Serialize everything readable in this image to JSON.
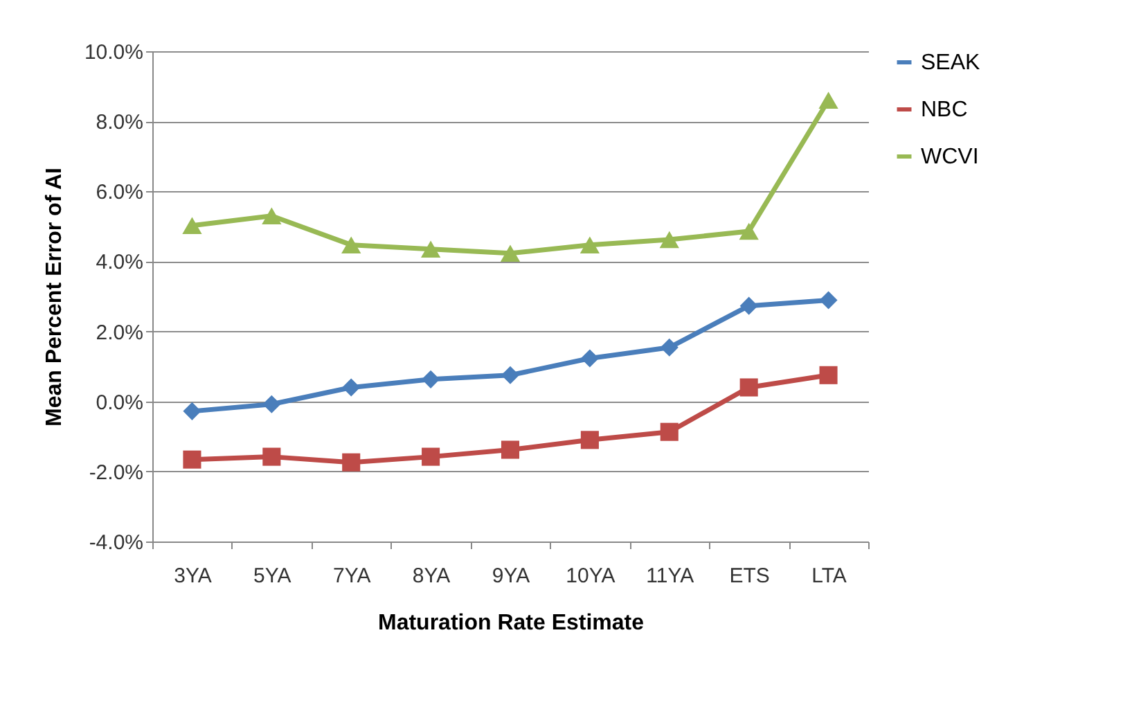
{
  "chart_data": {
    "type": "line",
    "xlabel": "Maturation Rate Estimate",
    "ylabel": "Mean Percent Error of AI",
    "categories": [
      "3YA",
      "5YA",
      "7YA",
      "8YA",
      "9YA",
      "10YA",
      "11YA",
      "ETS",
      "LTA"
    ],
    "series": [
      {
        "name": "SEAK",
        "color": "#4a7ebb",
        "marker": "diamond",
        "values": [
          -0.28,
          -0.08,
          0.4,
          0.63,
          0.75,
          1.23,
          1.54,
          2.73,
          2.89
        ]
      },
      {
        "name": "NBC",
        "color": "#be4b48",
        "marker": "square",
        "values": [
          -1.66,
          -1.58,
          -1.74,
          -1.58,
          -1.38,
          -1.1,
          -0.87,
          0.4,
          0.75
        ]
      },
      {
        "name": "WCVI",
        "color": "#98b954",
        "marker": "triangle",
        "values": [
          5.02,
          5.3,
          4.47,
          4.35,
          4.23,
          4.47,
          4.62,
          4.86,
          8.6
        ]
      }
    ],
    "ylim": [
      -4,
      10
    ],
    "yticks": [
      {
        "value": -4,
        "label": "-4.0%"
      },
      {
        "value": -2,
        "label": "-2.0%"
      },
      {
        "value": 0,
        "label": "0.0%"
      },
      {
        "value": 2,
        "label": "2.0%"
      },
      {
        "value": 4,
        "label": "4.0%"
      },
      {
        "value": 6,
        "label": "6.0%"
      },
      {
        "value": 8,
        "label": "8.0%"
      },
      {
        "value": 10,
        "label": "10.0%"
      }
    ],
    "grid": "y",
    "legend": "right",
    "line_style": "solid"
  }
}
